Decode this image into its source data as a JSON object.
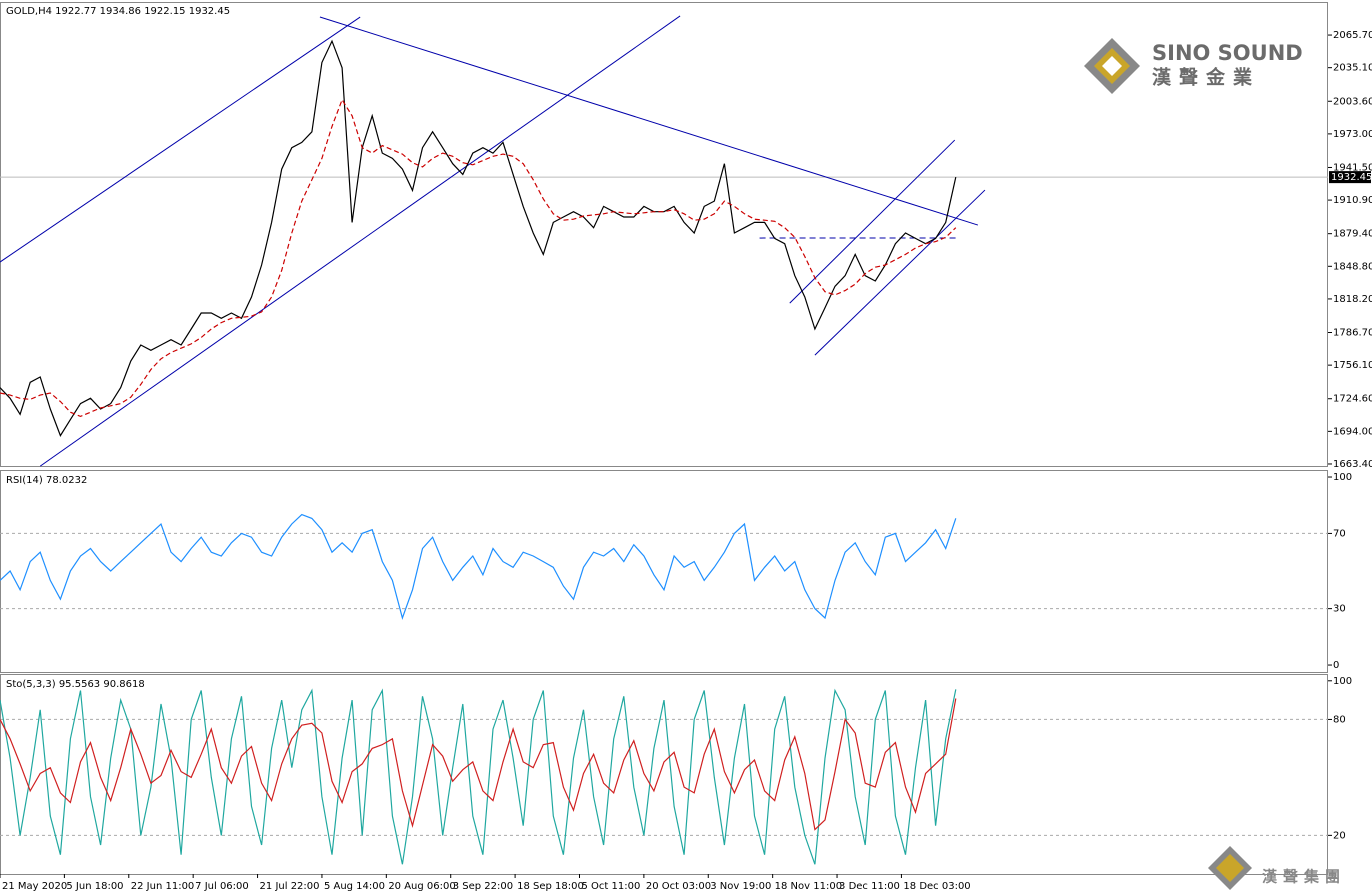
{
  "chart_data": [
    {
      "type": "line",
      "title": "GOLD,H4  1922.77 1934.86 1922.15 1932.45",
      "xlim": [
        0,
        132
      ],
      "ylim": [
        1661.5,
        2096.7
      ],
      "yticks": [
        {
          "value": 1663.4,
          "label": "1663.40"
        },
        {
          "value": 1694.0,
          "label": "1694.00"
        },
        {
          "value": 1724.6,
          "label": "1724.60"
        },
        {
          "value": 1756.1,
          "label": "1756.10"
        },
        {
          "value": 1786.7,
          "label": "1786.70"
        },
        {
          "value": 1818.2,
          "label": "1818.20"
        },
        {
          "value": 1848.8,
          "label": "1848.80"
        },
        {
          "value": 1879.4,
          "label": "1879.40"
        },
        {
          "value": 1910.9,
          "label": "1910.90"
        },
        {
          "value": 1941.5,
          "label": "1941.50"
        },
        {
          "value": 1973.0,
          "label": "1973.00"
        },
        {
          "value": 2003.6,
          "label": "2003.60"
        },
        {
          "value": 2035.1,
          "label": "2035.10"
        },
        {
          "value": 2065.7,
          "label": "2065.70"
        }
      ],
      "last_price": {
        "value": 1932.45,
        "label": "1932.45"
      },
      "x": [
        0,
        1,
        2,
        3,
        4,
        5,
        6,
        7,
        8,
        9,
        10,
        11,
        12,
        13,
        14,
        15,
        16,
        17,
        18,
        19,
        20,
        21,
        22,
        23,
        24,
        25,
        26,
        27,
        28,
        29,
        30,
        31,
        32,
        33,
        34,
        35,
        36,
        37,
        38,
        39,
        40,
        41,
        42,
        43,
        44,
        45,
        46,
        47,
        48,
        49,
        50,
        51,
        52,
        53,
        54,
        55,
        56,
        57,
        58,
        59,
        60,
        61,
        62,
        63,
        64,
        65,
        66,
        67,
        68,
        69,
        70,
        71,
        72,
        73,
        74,
        75,
        76,
        77,
        78,
        79,
        80,
        81,
        82,
        83,
        84,
        85,
        86,
        87,
        88,
        89,
        90,
        91,
        92,
        93,
        94,
        95
      ],
      "series": [
        {
          "name": "GOLD,H4",
          "color": "#000000",
          "dash": false,
          "values": [
            1735,
            1725,
            1710,
            1740,
            1745,
            1715,
            1690,
            1705,
            1720,
            1725,
            1715,
            1720,
            1735,
            1760,
            1775,
            1770,
            1775,
            1780,
            1775,
            1790,
            1805,
            1805,
            1800,
            1805,
            1800,
            1820,
            1850,
            1890,
            1940,
            1960,
            1965,
            1975,
            2040,
            2060,
            2035,
            1890,
            1960,
            1990,
            1955,
            1950,
            1940,
            1920,
            1960,
            1975,
            1960,
            1945,
            1935,
            1955,
            1960,
            1955,
            1965,
            1935,
            1905,
            1880,
            1860,
            1890,
            1895,
            1900,
            1895,
            1885,
            1905,
            1900,
            1895,
            1895,
            1905,
            1900,
            1900,
            1905,
            1890,
            1880,
            1905,
            1910,
            1945,
            1880,
            1885,
            1890,
            1890,
            1875,
            1870,
            1840,
            1820,
            1790,
            1810,
            1830,
            1840,
            1860,
            1840,
            1835,
            1850,
            1870,
            1880,
            1875,
            1870,
            1875,
            1890,
            1932.45
          ]
        },
        {
          "name": "MA",
          "color": "#cc0000",
          "dash": true,
          "values": [
            1730,
            1728,
            1725,
            1724,
            1728,
            1730,
            1722,
            1712,
            1708,
            1712,
            1716,
            1718,
            1720,
            1726,
            1738,
            1752,
            1762,
            1768,
            1772,
            1776,
            1782,
            1790,
            1796,
            1800,
            1801,
            1802,
            1806,
            1820,
            1845,
            1880,
            1910,
            1930,
            1950,
            1980,
            2005,
            1990,
            1960,
            1955,
            1962,
            1958,
            1954,
            1946,
            1942,
            1950,
            1955,
            1952,
            1946,
            1944,
            1948,
            1952,
            1954,
            1952,
            1945,
            1930,
            1912,
            1898,
            1892,
            1893,
            1896,
            1897,
            1898,
            1900,
            1899,
            1898,
            1899,
            1900,
            1900,
            1902,
            1898,
            1892,
            1893,
            1898,
            1910,
            1905,
            1898,
            1893,
            1892,
            1891,
            1885,
            1876,
            1858,
            1838,
            1825,
            1822,
            1826,
            1832,
            1842,
            1848,
            1850,
            1855,
            1860,
            1866,
            1870,
            1872,
            1876,
            1885
          ]
        }
      ],
      "trendlines": [
        {
          "color": "#0000aa",
          "dash": false,
          "x": [
            0,
            35.8
          ],
          "y": [
            1852.8,
            2082.6
          ]
        },
        {
          "color": "#0000aa",
          "dash": false,
          "x": [
            4,
            67.6
          ],
          "y": [
            1661.4,
            2083.6
          ]
        },
        {
          "color": "#0000aa",
          "dash": false,
          "x": [
            31.8,
            97.2
          ],
          "y": [
            2082.6,
            1887.5
          ]
        },
        {
          "color": "#0000aa",
          "dash": false,
          "x": [
            78.5,
            94.9
          ],
          "y": [
            1814.3,
            1967.2
          ]
        },
        {
          "color": "#0000aa",
          "dash": false,
          "x": [
            81,
            97.9
          ],
          "y": [
            1765.5,
            1920.3
          ]
        },
        {
          "color": "#0000aa",
          "dash": true,
          "x": [
            75.5,
            95.2
          ],
          "y": [
            1875.3,
            1875.3
          ]
        }
      ]
    },
    {
      "type": "line",
      "title": "RSI(14) 78.0232",
      "xlim": [
        0,
        132
      ],
      "ylim": [
        -3.7,
        103.2
      ],
      "yticks": [
        0,
        30,
        70,
        100
      ],
      "x": [
        0,
        1,
        2,
        3,
        4,
        5,
        6,
        7,
        8,
        9,
        10,
        11,
        12,
        13,
        14,
        15,
        16,
        17,
        18,
        19,
        20,
        21,
        22,
        23,
        24,
        25,
        26,
        27,
        28,
        29,
        30,
        31,
        32,
        33,
        34,
        35,
        36,
        37,
        38,
        39,
        40,
        41,
        42,
        43,
        44,
        45,
        46,
        47,
        48,
        49,
        50,
        51,
        52,
        53,
        54,
        55,
        56,
        57,
        58,
        59,
        60,
        61,
        62,
        63,
        64,
        65,
        66,
        67,
        68,
        69,
        70,
        71,
        72,
        73,
        74,
        75,
        76,
        77,
        78,
        79,
        80,
        81,
        82,
        83,
        84,
        85,
        86,
        87,
        88,
        89,
        90,
        91,
        92,
        93,
        94,
        95
      ],
      "series": [
        {
          "name": "RSI(14)",
          "color": "#1e8fff",
          "dash": false,
          "values": [
            45,
            50,
            40,
            55,
            60,
            45,
            35,
            50,
            58,
            62,
            55,
            50,
            55,
            60,
            65,
            70,
            75,
            60,
            55,
            62,
            68,
            60,
            58,
            65,
            70,
            68,
            60,
            58,
            68,
            75,
            80,
            78,
            72,
            60,
            65,
            60,
            70,
            72,
            55,
            45,
            25,
            40,
            62,
            68,
            55,
            45,
            52,
            58,
            48,
            62,
            55,
            52,
            60,
            58,
            55,
            52,
            42,
            35,
            52,
            60,
            58,
            62,
            55,
            64,
            58,
            48,
            40,
            58,
            52,
            55,
            45,
            52,
            60,
            70,
            75,
            45,
            52,
            58,
            50,
            55,
            40,
            30,
            25,
            45,
            60,
            65,
            55,
            48,
            68,
            70,
            55,
            60,
            65,
            72,
            62,
            78.0232
          ]
        }
      ]
    },
    {
      "type": "line",
      "title": "Sto(5,3,3) 95.5563 90.8618",
      "xlim": [
        0,
        132
      ],
      "ylim": [
        0,
        103
      ],
      "yticks": [
        20,
        80,
        100
      ],
      "xticks": [
        {
          "value": 0,
          "label": "21 May 2020"
        },
        {
          "value": 6.4,
          "label": "5 Jun 18:00"
        },
        {
          "value": 12.8,
          "label": "22 Jun 11:00"
        },
        {
          "value": 19.2,
          "label": "7 Jul 06:00"
        },
        {
          "value": 25.6,
          "label": "21 Jul 22:00"
        },
        {
          "value": 32,
          "label": "5 Aug 14:00"
        },
        {
          "value": 38.4,
          "label": "20 Aug 06:00"
        },
        {
          "value": 44.8,
          "label": "3 Sep 22:00"
        },
        {
          "value": 51.2,
          "label": "18 Sep 18:00"
        },
        {
          "value": 57.6,
          "label": "5 Oct 11:00"
        },
        {
          "value": 64,
          "label": "20 Oct 03:00"
        },
        {
          "value": 70.4,
          "label": "3 Nov 19:00"
        },
        {
          "value": 76.8,
          "label": "18 Nov 11:00"
        },
        {
          "value": 83.2,
          "label": "3 Dec 11:00"
        },
        {
          "value": 89.6,
          "label": "18 Dec 03:00"
        }
      ],
      "x": [
        0,
        1,
        2,
        3,
        4,
        5,
        6,
        7,
        8,
        9,
        10,
        11,
        12,
        13,
        14,
        15,
        16,
        17,
        18,
        19,
        20,
        21,
        22,
        23,
        24,
        25,
        26,
        27,
        28,
        29,
        30,
        31,
        32,
        33,
        34,
        35,
        36,
        37,
        38,
        39,
        40,
        41,
        42,
        43,
        44,
        45,
        46,
        47,
        48,
        49,
        50,
        51,
        52,
        53,
        54,
        55,
        56,
        57,
        58,
        59,
        60,
        61,
        62,
        63,
        64,
        65,
        66,
        67,
        68,
        69,
        70,
        71,
        72,
        73,
        74,
        75,
        76,
        77,
        78,
        79,
        80,
        81,
        82,
        83,
        84,
        85,
        86,
        87,
        88,
        89,
        90,
        91,
        92,
        93,
        94,
        95
      ],
      "series": [
        {
          "name": "Main",
          "color": "#20a8a0",
          "dash": false,
          "values": [
            90,
            60,
            20,
            50,
            85,
            30,
            10,
            70,
            95,
            40,
            15,
            60,
            90,
            75,
            20,
            45,
            88,
            60,
            10,
            80,
            95,
            50,
            20,
            70,
            92,
            35,
            15,
            65,
            90,
            55,
            85,
            95,
            40,
            10,
            60,
            90,
            20,
            85,
            95,
            30,
            5,
            40,
            92,
            70,
            20,
            55,
            88,
            30,
            10,
            75,
            90,
            60,
            25,
            80,
            95,
            30,
            10,
            60,
            85,
            40,
            15,
            70,
            92,
            45,
            20,
            65,
            90,
            35,
            10,
            80,
            95,
            50,
            15,
            60,
            88,
            30,
            10,
            75,
            92,
            45,
            20,
            5,
            60,
            95,
            85,
            40,
            15,
            80,
            95,
            30,
            10,
            55,
            90,
            25,
            70,
            95.5563
          ]
        },
        {
          "name": "Signal",
          "color": "#d02020",
          "dash": false,
          "values": [
            80,
            70,
            57,
            43,
            52,
            55,
            42,
            37,
            58,
            68,
            50,
            38,
            55,
            75,
            62,
            47,
            51,
            64,
            53,
            50,
            62,
            75,
            55,
            47,
            61,
            66,
            47,
            38,
            57,
            70,
            77,
            78,
            73,
            48,
            37,
            53,
            57,
            65,
            67,
            70,
            43,
            25,
            46,
            67,
            61,
            48,
            54,
            58,
            43,
            38,
            58,
            75,
            58,
            55,
            67,
            68,
            45,
            33,
            52,
            62,
            47,
            42,
            59,
            69,
            52,
            43,
            58,
            63,
            45,
            42,
            62,
            75,
            53,
            42,
            54,
            59,
            43,
            38,
            59,
            71,
            52,
            23,
            28,
            53,
            80,
            73,
            47,
            45,
            63,
            68,
            45,
            32,
            52,
            57,
            62,
            90.8618
          ]
        }
      ]
    }
  ],
  "logo": {
    "title": "SINO SOUND",
    "subtitle": "漢聲金業",
    "footer": "漢聲集團"
  }
}
